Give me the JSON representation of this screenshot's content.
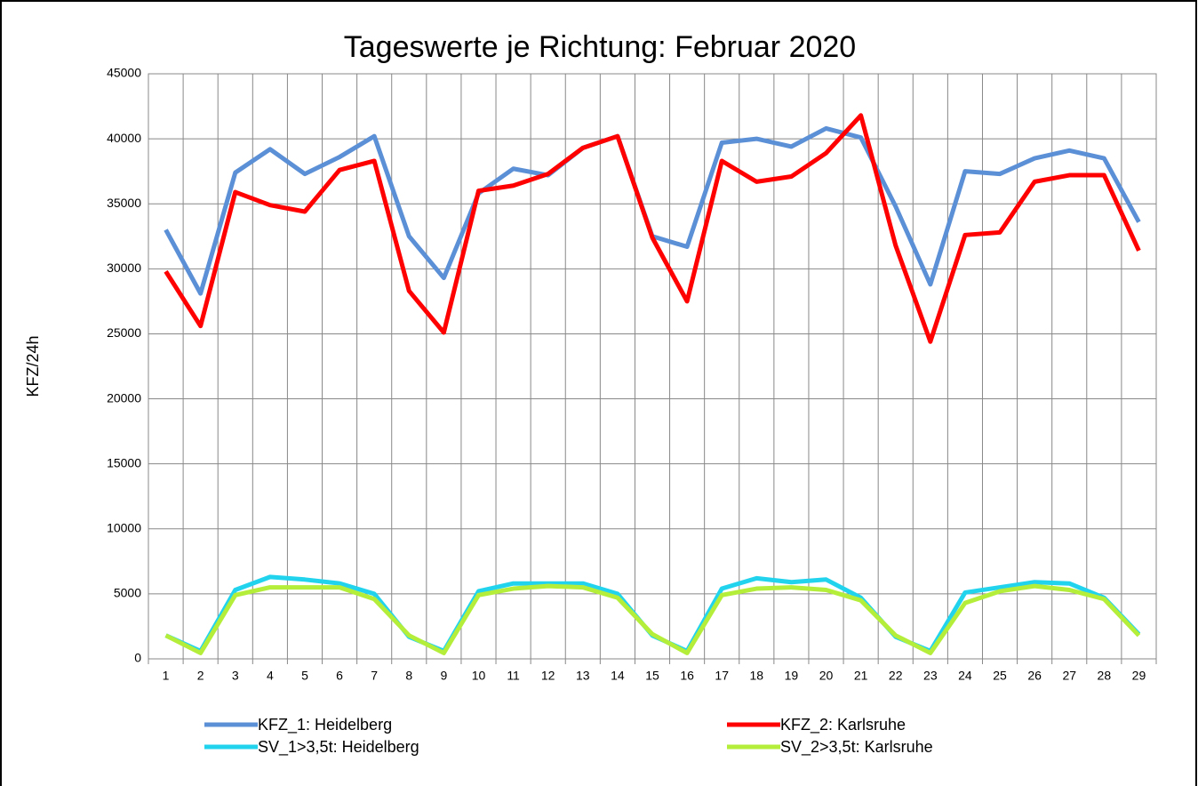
{
  "chart_data": {
    "type": "line",
    "title": "Tageswerte je Richtung: Februar 2020",
    "y_label": "KFZ/24h",
    "categories": [
      "1",
      "2",
      "3",
      "4",
      "5",
      "6",
      "7",
      "8",
      "9",
      "10",
      "11",
      "12",
      "13",
      "14",
      "15",
      "16",
      "17",
      "18",
      "19",
      "20",
      "21",
      "22",
      "23",
      "24",
      "25",
      "26",
      "27",
      "28",
      "29"
    ],
    "ylim": [
      0,
      45000
    ],
    "yticks": [
      0,
      5000,
      10000,
      15000,
      20000,
      25000,
      30000,
      35000,
      40000,
      45000
    ],
    "grid": true,
    "legend": "bottom",
    "series": [
      {
        "name": "KFZ_1: Heidelberg",
        "color": "#5b8fd6",
        "values": [
          33000,
          28100,
          37400,
          39200,
          37300,
          38600,
          40200,
          32500,
          29300,
          35800,
          37700,
          37200,
          39300,
          40200,
          32500,
          31700,
          39700,
          40000,
          39400,
          40800,
          40100,
          34800,
          28800,
          37500,
          37300,
          38500,
          39100,
          38500,
          33600
        ]
      },
      {
        "name": "KFZ_2: Karlsruhe",
        "color": "#ff0000",
        "values": [
          29800,
          25600,
          35900,
          34900,
          34400,
          37600,
          38300,
          28300,
          25100,
          36000,
          36400,
          37300,
          39300,
          40200,
          32400,
          27500,
          38300,
          36700,
          37100,
          38900,
          41800,
          31800,
          24400,
          32600,
          32800,
          36700,
          37200,
          37200,
          31400
        ]
      },
      {
        "name": "SV_1>3,5t: Heidelberg",
        "color": "#22d3ee",
        "values": [
          1800,
          600,
          5300,
          6300,
          6100,
          5800,
          5000,
          1700,
          600,
          5200,
          5800,
          5800,
          5800,
          5000,
          1800,
          600,
          5400,
          6200,
          5900,
          6100,
          4700,
          1700,
          600,
          5100,
          5500,
          5900,
          5800,
          4700,
          1900
        ]
      },
      {
        "name": "SV_2>3,5t: Karlsruhe",
        "color": "#b5ee3a",
        "values": [
          1800,
          450,
          4900,
          5500,
          5500,
          5500,
          4600,
          1800,
          450,
          4900,
          5400,
          5600,
          5500,
          4700,
          1900,
          450,
          4900,
          5400,
          5500,
          5300,
          4500,
          1800,
          450,
          4300,
          5200,
          5600,
          5300,
          4600,
          1800
        ]
      }
    ]
  }
}
